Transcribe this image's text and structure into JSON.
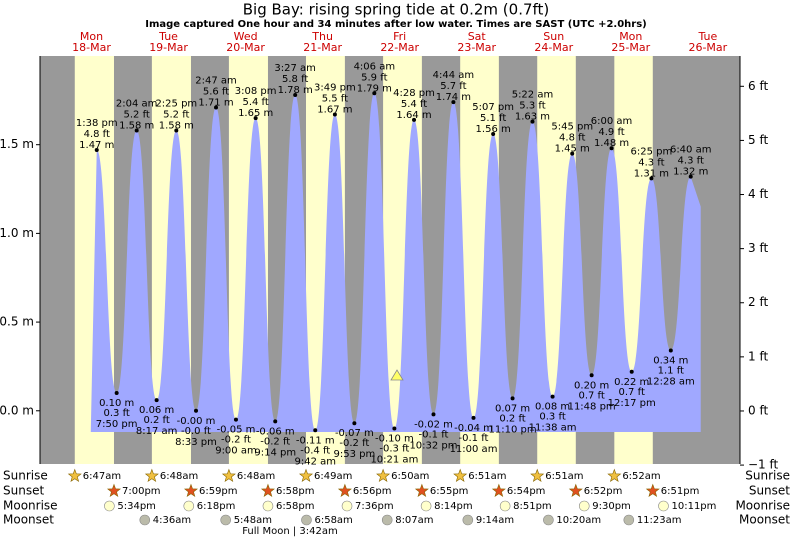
{
  "chart_data": {
    "type": "tide",
    "title": "Big Bay: rising  spring tide at 0.2m (0.7ft)",
    "subtitle": "Image captured One hour and 34 minutes after low water. Times are SAST (UTC +2.0hrs)",
    "ylim": [
      -0.3,
      2.0
    ],
    "yticks": [
      {
        "value": 0,
        "label": "0.0 m"
      },
      {
        "value": 0.5,
        "label": "0.5 m"
      },
      {
        "value": 1,
        "label": "1.0 m"
      },
      {
        "value": 1.5,
        "label": "1.5 m"
      }
    ],
    "y2lim": [
      -0.98,
      6.56
    ],
    "y2ticks": [
      {
        "value": -1,
        "label": "−1 ft"
      },
      {
        "value": 0,
        "label": "0 ft"
      },
      {
        "value": 1,
        "label": "1 ft"
      },
      {
        "value": 2,
        "label": "2 ft"
      },
      {
        "value": 3,
        "label": "3 ft"
      },
      {
        "value": 4,
        "label": "4 ft"
      },
      {
        "value": 5,
        "label": "5 ft"
      },
      {
        "value": 6,
        "label": "6 ft"
      }
    ],
    "row_labels": [
      "Sunrise",
      "Sunset",
      "Moonrise",
      "Moonset"
    ],
    "full_moon": "Full Moon | 3:42am",
    "days": [
      {
        "dow": "Mon",
        "date": "18-Mar",
        "sunrise": "6:47am",
        "sunset": "7:00pm",
        "moonrise": "5:34pm",
        "tides": [
          {
            "time": "1:38 pm",
            "ft": "4.8 ft",
            "m": 1.47,
            "m_label": "1.47 m"
          },
          {
            "time": "7:50 pm",
            "ft": "0.3 ft",
            "m": 0.1,
            "m_label": "0.10 m"
          }
        ]
      },
      {
        "dow": "Tue",
        "date": "19-Mar",
        "sunrise": "6:48am",
        "sunset": "6:59pm",
        "moonrise": "6:18pm",
        "moonset": "4:36am",
        "tides": [
          {
            "time": "2:04 am",
            "ft": "5.2 ft",
            "m": 1.58,
            "m_label": "1.58 m"
          },
          {
            "time": "8:17 am",
            "ft": "0.2 ft",
            "m": 0.06,
            "m_label": "0.06 m"
          },
          {
            "time": "2:25 pm",
            "ft": "5.2 ft",
            "m": 1.58,
            "m_label": "1.58 m"
          },
          {
            "time": "8:33 pm",
            "ft": "-0.0 ft",
            "m": 0,
            "m_label": "-0.00 m"
          }
        ]
      },
      {
        "dow": "Wed",
        "date": "20-Mar",
        "sunrise": "6:48am",
        "sunset": "6:58pm",
        "moonrise": "6:58pm",
        "moonset": "5:48am",
        "tides": [
          {
            "time": "2:47 am",
            "ft": "5.6 ft",
            "m": 1.71,
            "m_label": "1.71 m"
          },
          {
            "time": "9:00 am",
            "ft": "-0.2 ft",
            "m": -0.05,
            "m_label": "-0.05 m"
          },
          {
            "time": "3:08 pm",
            "ft": "5.4 ft",
            "m": 1.65,
            "m_label": "1.65 m"
          },
          {
            "time": "9:14 pm",
            "ft": "-0.2 ft",
            "m": -0.06,
            "m_label": "-0.06 m"
          }
        ]
      },
      {
        "dow": "Thu",
        "date": "21-Mar",
        "sunrise": "6:49am",
        "sunset": "6:56pm",
        "moonrise": "7:36pm",
        "moonset": "6:58am",
        "tides": [
          {
            "time": "3:27 am",
            "ft": "5.8 ft",
            "m": 1.78,
            "m_label": "1.78 m"
          },
          {
            "time": "9:42 am",
            "ft": "-0.4 ft",
            "m": -0.11,
            "m_label": "-0.11 m"
          },
          {
            "time": "3:49 pm",
            "ft": "5.5 ft",
            "m": 1.67,
            "m_label": "1.67 m"
          },
          {
            "time": "9:53 pm",
            "ft": "-0.2 ft",
            "m": -0.07,
            "m_label": "-0.07 m"
          }
        ]
      },
      {
        "dow": "Fri",
        "date": "22-Mar",
        "sunrise": "6:50am",
        "sunset": "6:55pm",
        "moonrise": "8:14pm",
        "moonset": "8:07am",
        "tides": [
          {
            "time": "4:06 am",
            "ft": "5.9 ft",
            "m": 1.79,
            "m_label": "1.79 m"
          },
          {
            "time": "10:21 am",
            "ft": "-0.3 ft",
            "m": -0.1,
            "m_label": "-0.10 m"
          },
          {
            "time": "4:28 pm",
            "ft": "5.4 ft",
            "m": 1.64,
            "m_label": "1.64 m"
          },
          {
            "time": "10:32 pm",
            "ft": "-0.1 ft",
            "m": -0.02,
            "m_label": "-0.02 m"
          }
        ]
      },
      {
        "dow": "Sat",
        "date": "23-Mar",
        "sunrise": "6:51am",
        "sunset": "6:54pm",
        "moonrise": "8:51pm",
        "moonset": "9:14am",
        "tides": [
          {
            "time": "4:44 am",
            "ft": "5.7 ft",
            "m": 1.74,
            "m_label": "1.74 m"
          },
          {
            "time": "11:00 am",
            "ft": "-0.1 ft",
            "m": -0.04,
            "m_label": "-0.04 m"
          },
          {
            "time": "5:07 pm",
            "ft": "5.1 ft",
            "m": 1.56,
            "m_label": "1.56 m"
          },
          {
            "time": "11:10 pm",
            "ft": "0.2 ft",
            "m": 0.07,
            "m_label": "0.07 m"
          }
        ]
      },
      {
        "dow": "Sun",
        "date": "24-Mar",
        "sunrise": "6:51am",
        "sunset": "6:52pm",
        "moonrise": "9:30pm",
        "moonset": "10:20am",
        "tides": [
          {
            "time": "5:22 am",
            "ft": "5.3 ft",
            "m": 1.63,
            "m_label": "1.63 m"
          },
          {
            "time": "11:38 am",
            "ft": "0.3 ft",
            "m": 0.08,
            "m_label": "0.08 m"
          },
          {
            "time": "5:45 pm",
            "ft": "4.8 ft",
            "m": 1.45,
            "m_label": "1.45 m"
          },
          {
            "time": "11:48 pm",
            "ft": "0.7 ft",
            "m": 0.2,
            "m_label": "0.20 m"
          }
        ]
      },
      {
        "dow": "Mon",
        "date": "25-Mar",
        "sunrise": "6:52am",
        "sunset": "6:51pm",
        "moonrise": "10:11pm",
        "moonset": "11:23am",
        "tides": [
          {
            "time": "6:00 am",
            "ft": "4.9 ft",
            "m": 1.48,
            "m_label": "1.48 m"
          },
          {
            "time": "12:17 pm",
            "ft": "0.7 ft",
            "m": 0.22,
            "m_label": "0.22 m"
          },
          {
            "time": "6:25 pm",
            "ft": "4.3 ft",
            "m": 1.31,
            "m_label": "1.31 m"
          }
        ]
      },
      {
        "dow": "Tue",
        "date": "26-Mar",
        "tides": [
          {
            "time": "12:28 am",
            "ft": "1.1 ft",
            "m": 0.34,
            "m_label": "0.34 m"
          },
          {
            "time": "6:40 am",
            "ft": "4.3 ft",
            "m": 1.32,
            "m_label": "1.32 m"
          }
        ]
      }
    ]
  }
}
